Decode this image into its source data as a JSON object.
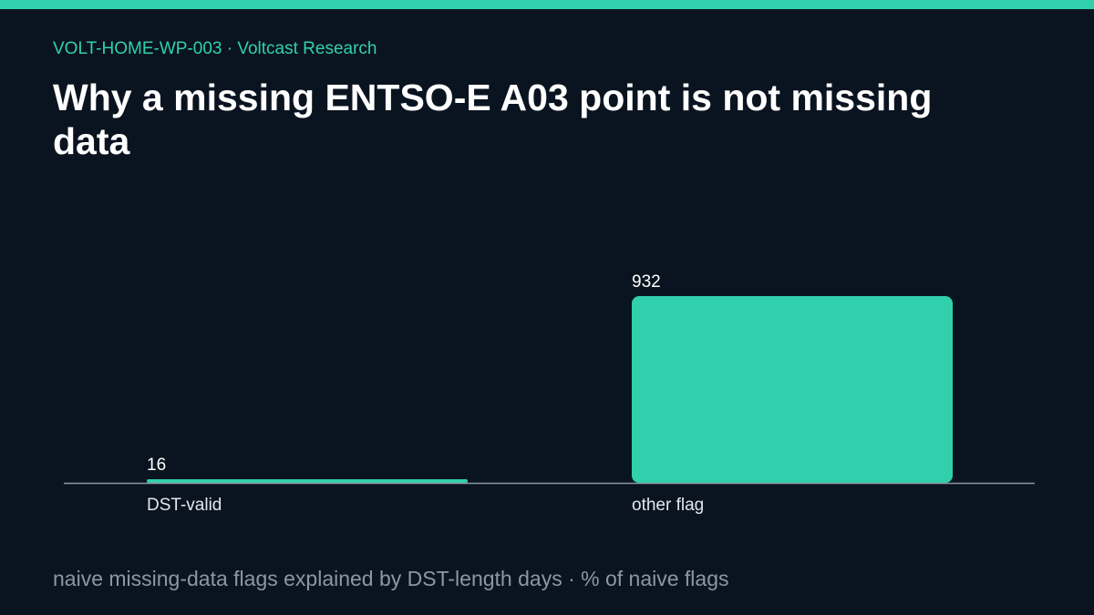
{
  "header": {
    "eyebrow": "VOLT-HOME-WP-003 · Voltcast Research",
    "title": "Why a missing ENTSO-E A03 point is not missing data"
  },
  "caption": "naive missing-data flags explained by DST-length days · % of naive flags",
  "colors": {
    "accent": "#31d0ad",
    "background": "#0a1420",
    "baseline": "#8b97a6",
    "title": "#ffffff",
    "caption": "#8b97a6"
  },
  "chart_data": {
    "type": "bar",
    "title": "",
    "xlabel": "",
    "ylabel": "",
    "categories": [
      "DST-valid",
      "other flag"
    ],
    "values": [
      16,
      932
    ],
    "data_labels": [
      "16",
      "932"
    ],
    "ylim": [
      0,
      932
    ],
    "grid": false,
    "legend": "none"
  }
}
